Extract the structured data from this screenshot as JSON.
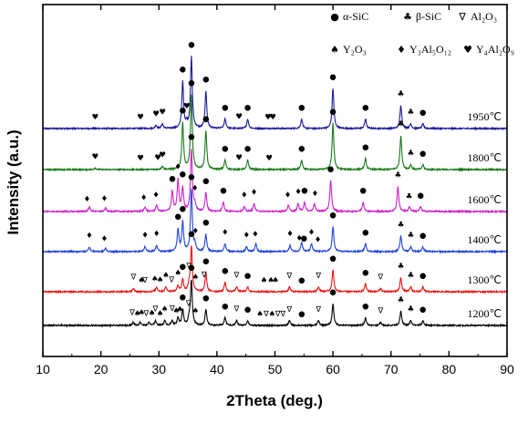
{
  "chart_data": {
    "type": "line",
    "xlabel": "2Theta (deg.)",
    "ylabel": "Intensity (a.u.)",
    "xlim": [
      10,
      90
    ],
    "xticks": [
      "10",
      "20",
      "30",
      "40",
      "50",
      "60",
      "70",
      "80",
      "90"
    ],
    "y_tick_labels_shown": false,
    "grid": false,
    "legend_placement": "top-right",
    "legend": [
      {
        "symbol": "●",
        "label": "α-SiC",
        "name": "alpha-sic"
      },
      {
        "symbol": "♣",
        "label": "β-SiC",
        "name": "beta-sic"
      },
      {
        "symbol": "∇",
        "label": "Al₂O₃",
        "name": "al2o3"
      },
      {
        "symbol": "♠",
        "label": "Y₂O₃",
        "name": "y2o3"
      },
      {
        "symbol": "♦",
        "label": "Y₃Al₅O₁₂",
        "name": "yag"
      },
      {
        "symbol": "♥",
        "label": "Y₄Al₂O₉",
        "name": "yam"
      }
    ],
    "series": [
      {
        "name": "1950℃",
        "color": "#1a1a99",
        "baseline": 0,
        "peaks": [
          [
            34.1,
            3.0
          ],
          [
            35.6,
            4.6
          ],
          [
            38.1,
            2.4
          ],
          [
            41.4,
            0.6
          ],
          [
            45.3,
            0.6
          ],
          [
            54.6,
            0.6
          ],
          [
            60.0,
            2.6
          ],
          [
            65.6,
            0.6
          ],
          [
            71.7,
            1.5
          ],
          [
            73.4,
            0.3
          ],
          [
            75.5,
            0.3
          ],
          [
            30.6,
            0.3
          ],
          [
            29.5,
            0.2
          ],
          [
            34.8,
            0.3
          ]
        ],
        "markers": [
          {
            "x": 19.0,
            "s": "♥"
          },
          {
            "x": 26.8,
            "s": "♥"
          },
          {
            "x": 29.5,
            "s": "♥"
          },
          {
            "x": 30.6,
            "s": "♥"
          },
          {
            "x": 34.1,
            "s": "●"
          },
          {
            "x": 34.8,
            "s": "♥"
          },
          {
            "x": 35.6,
            "s": "●"
          },
          {
            "x": 38.1,
            "s": "●"
          },
          {
            "x": 41.4,
            "s": "●"
          },
          {
            "x": 43.8,
            "s": "♥"
          },
          {
            "x": 45.3,
            "s": "●"
          },
          {
            "x": 48.8,
            "s": "♥"
          },
          {
            "x": 49.6,
            "s": "♥"
          },
          {
            "x": 54.6,
            "s": "●"
          },
          {
            "x": 60.0,
            "s": "●"
          },
          {
            "x": 65.6,
            "s": "●"
          },
          {
            "x": 71.7,
            "s": "♣"
          },
          {
            "x": 73.4,
            "s": "♣"
          },
          {
            "x": 75.5,
            "s": "●"
          }
        ]
      },
      {
        "name": "1800℃",
        "color": "#1a7a1a",
        "baseline": 1,
        "peaks": [
          [
            34.1,
            3.0
          ],
          [
            35.6,
            4.8
          ],
          [
            38.1,
            2.5
          ],
          [
            41.4,
            0.6
          ],
          [
            45.3,
            0.6
          ],
          [
            54.6,
            0.6
          ],
          [
            60.0,
            3.0
          ],
          [
            65.6,
            0.7
          ],
          [
            71.7,
            2.2
          ],
          [
            73.4,
            0.3
          ],
          [
            75.5,
            0.3
          ],
          [
            30.6,
            0.2
          ],
          [
            19.0,
            0.1
          ]
        ],
        "markers": [
          {
            "x": 19.0,
            "s": "♥"
          },
          {
            "x": 26.8,
            "s": "♥"
          },
          {
            "x": 29.8,
            "s": "♥"
          },
          {
            "x": 30.6,
            "s": "♥"
          },
          {
            "x": 34.1,
            "s": "●"
          },
          {
            "x": 35.6,
            "s": "●"
          },
          {
            "x": 38.1,
            "s": "●"
          },
          {
            "x": 41.4,
            "s": "●"
          },
          {
            "x": 43.8,
            "s": "♥"
          },
          {
            "x": 45.3,
            "s": "●"
          },
          {
            "x": 49.0,
            "s": "♥"
          },
          {
            "x": 54.6,
            "s": "●"
          },
          {
            "x": 60.0,
            "s": "●"
          },
          {
            "x": 65.6,
            "s": "●"
          },
          {
            "x": 71.7,
            "s": "♣"
          },
          {
            "x": 73.4,
            "s": "♣"
          },
          {
            "x": 75.5,
            "s": "●"
          }
        ]
      },
      {
        "name": "1600℃",
        "color": "#cc22cc",
        "baseline": 2,
        "peaks": [
          [
            18.0,
            0.3
          ],
          [
            20.8,
            0.2
          ],
          [
            27.6,
            0.3
          ],
          [
            29.6,
            0.4
          ],
          [
            32.3,
            1.3
          ],
          [
            33.3,
            2.0
          ],
          [
            34.1,
            1.5
          ],
          [
            35.6,
            4.0
          ],
          [
            36.2,
            0.4
          ],
          [
            38.1,
            1.2
          ],
          [
            41.1,
            0.6
          ],
          [
            44.7,
            0.3
          ],
          [
            46.4,
            0.5
          ],
          [
            52.3,
            0.4
          ],
          [
            54.0,
            0.5
          ],
          [
            55.1,
            0.6
          ],
          [
            56.8,
            0.5
          ],
          [
            59.6,
            2.0
          ],
          [
            65.2,
            0.6
          ],
          [
            71.2,
            1.6
          ],
          [
            73.2,
            0.3
          ],
          [
            75.1,
            0.3
          ]
        ],
        "markers": [
          {
            "x": 17.6,
            "s": "♦"
          },
          {
            "x": 20.6,
            "s": "♦"
          },
          {
            "x": 27.4,
            "s": "♦"
          },
          {
            "x": 29.5,
            "s": "♦"
          },
          {
            "x": 32.3,
            "s": "●"
          },
          {
            "x": 33.3,
            "s": "♦"
          },
          {
            "x": 34.1,
            "s": "●"
          },
          {
            "x": 35.6,
            "s": "●"
          },
          {
            "x": 36.2,
            "s": "♦"
          },
          {
            "x": 38.1,
            "s": "●"
          },
          {
            "x": 41.1,
            "s": "●"
          },
          {
            "x": 44.7,
            "s": "♦"
          },
          {
            "x": 46.4,
            "s": "♦"
          },
          {
            "x": 52.2,
            "s": "♦"
          },
          {
            "x": 54.0,
            "s": "♦"
          },
          {
            "x": 55.1,
            "s": "●"
          },
          {
            "x": 56.9,
            "s": "♦"
          },
          {
            "x": 59.6,
            "s": "●"
          },
          {
            "x": 65.2,
            "s": "●"
          },
          {
            "x": 71.2,
            "s": "♣"
          },
          {
            "x": 73.1,
            "s": "♣"
          },
          {
            "x": 75.1,
            "s": "●"
          }
        ]
      },
      {
        "name": "1400℃",
        "color": "#2244dd",
        "baseline": 3,
        "peaks": [
          [
            18.0,
            0.3
          ],
          [
            20.8,
            0.2
          ],
          [
            27.6,
            0.3
          ],
          [
            29.6,
            0.4
          ],
          [
            33.3,
            1.4
          ],
          [
            34.1,
            1.9
          ],
          [
            35.6,
            4.0
          ],
          [
            36.2,
            0.4
          ],
          [
            38.1,
            1.1
          ],
          [
            41.4,
            0.5
          ],
          [
            45.1,
            0.3
          ],
          [
            46.7,
            0.5
          ],
          [
            52.6,
            0.4
          ],
          [
            54.6,
            0.6
          ],
          [
            56.3,
            0.5
          ],
          [
            60.0,
            1.6
          ],
          [
            65.6,
            0.5
          ],
          [
            71.7,
            1.0
          ],
          [
            73.4,
            0.3
          ],
          [
            75.5,
            0.3
          ]
        ],
        "markers": [
          {
            "x": 18.0,
            "s": "♦"
          },
          {
            "x": 20.6,
            "s": "♦"
          },
          {
            "x": 27.6,
            "s": "♦"
          },
          {
            "x": 29.6,
            "s": "♦"
          },
          {
            "x": 33.3,
            "s": "●"
          },
          {
            "x": 34.1,
            "s": "●"
          },
          {
            "x": 35.6,
            "s": "●"
          },
          {
            "x": 36.3,
            "s": "♦"
          },
          {
            "x": 38.1,
            "s": "●"
          },
          {
            "x": 41.4,
            "s": "♦"
          },
          {
            "x": 45.1,
            "s": "♦"
          },
          {
            "x": 46.6,
            "s": "♦"
          },
          {
            "x": 52.6,
            "s": "♦"
          },
          {
            "x": 54.2,
            "s": "♦"
          },
          {
            "x": 55.0,
            "s": "●"
          },
          {
            "x": 56.3,
            "s": "♦"
          },
          {
            "x": 57.4,
            "s": "♦"
          },
          {
            "x": 60.0,
            "s": "●"
          },
          {
            "x": 65.6,
            "s": "●"
          },
          {
            "x": 71.7,
            "s": "♣"
          },
          {
            "x": 73.4,
            "s": "♣"
          },
          {
            "x": 75.5,
            "s": "●"
          }
        ]
      },
      {
        "name": "1300℃",
        "color": "#ee1111",
        "baseline": 4,
        "peaks": [
          [
            25.6,
            0.2
          ],
          [
            29.6,
            0.3
          ],
          [
            31.2,
            0.3
          ],
          [
            33.3,
            0.4
          ],
          [
            34.1,
            0.8
          ],
          [
            35.2,
            0.4
          ],
          [
            35.6,
            2.9
          ],
          [
            38.1,
            1.2
          ],
          [
            41.4,
            0.6
          ],
          [
            43.4,
            0.3
          ],
          [
            45.3,
            0.3
          ],
          [
            52.5,
            0.3
          ],
          [
            57.5,
            0.3
          ],
          [
            60.0,
            1.4
          ],
          [
            65.6,
            0.5
          ],
          [
            68.2,
            0.2
          ],
          [
            71.7,
            0.9
          ],
          [
            73.4,
            0.3
          ],
          [
            75.5,
            0.3
          ]
        ],
        "markers": [
          {
            "x": 25.6,
            "s": "∇"
          },
          {
            "x": 27.0,
            "s": "♠"
          },
          {
            "x": 27.6,
            "s": "∇"
          },
          {
            "x": 29.3,
            "s": "♠"
          },
          {
            "x": 30.2,
            "s": "♠"
          },
          {
            "x": 31.2,
            "s": "♠"
          },
          {
            "x": 32.2,
            "s": "∇"
          },
          {
            "x": 33.3,
            "s": "♠"
          },
          {
            "x": 34.1,
            "s": "●"
          },
          {
            "x": 35.2,
            "s": "∇"
          },
          {
            "x": 35.6,
            "s": "●"
          },
          {
            "x": 36.3,
            "s": "♠"
          },
          {
            "x": 37.8,
            "s": "∇"
          },
          {
            "x": 38.1,
            "s": "●"
          },
          {
            "x": 41.4,
            "s": "●"
          },
          {
            "x": 43.4,
            "s": "∇"
          },
          {
            "x": 45.3,
            "s": "●"
          },
          {
            "x": 48.1,
            "s": "♠"
          },
          {
            "x": 49.3,
            "s": "♠"
          },
          {
            "x": 50.1,
            "s": "♠"
          },
          {
            "x": 52.5,
            "s": "∇"
          },
          {
            "x": 54.6,
            "s": "●"
          },
          {
            "x": 57.5,
            "s": "∇"
          },
          {
            "x": 60.0,
            "s": "●"
          },
          {
            "x": 65.6,
            "s": "●"
          },
          {
            "x": 68.2,
            "s": "∇"
          },
          {
            "x": 71.7,
            "s": "♣"
          },
          {
            "x": 73.4,
            "s": "♣"
          },
          {
            "x": 75.5,
            "s": "●"
          }
        ]
      },
      {
        "name": "1200℃",
        "color": "#000000",
        "baseline": 5,
        "peaks": [
          [
            25.6,
            0.2
          ],
          [
            26.8,
            0.2
          ],
          [
            28.3,
            0.2
          ],
          [
            29.4,
            0.3
          ],
          [
            31.0,
            0.3
          ],
          [
            32.3,
            0.3
          ],
          [
            33.3,
            0.5
          ],
          [
            34.1,
            1.0
          ],
          [
            35.2,
            0.4
          ],
          [
            35.6,
            2.9
          ],
          [
            38.1,
            1.0
          ],
          [
            41.4,
            0.5
          ],
          [
            43.4,
            0.3
          ],
          [
            45.3,
            0.3
          ],
          [
            52.5,
            0.3
          ],
          [
            57.5,
            0.3
          ],
          [
            60.0,
            1.4
          ],
          [
            65.6,
            0.5
          ],
          [
            68.2,
            0.2
          ],
          [
            71.7,
            0.9
          ],
          [
            73.4,
            0.3
          ],
          [
            75.5,
            0.3
          ]
        ],
        "markers": [
          {
            "x": 25.4,
            "s": "∇"
          },
          {
            "x": 26.3,
            "s": "♠"
          },
          {
            "x": 27.0,
            "s": "♠"
          },
          {
            "x": 27.8,
            "s": "∇"
          },
          {
            "x": 28.8,
            "s": "♠"
          },
          {
            "x": 29.4,
            "s": "∇"
          },
          {
            "x": 30.2,
            "s": "♠"
          },
          {
            "x": 31.0,
            "s": "♠"
          },
          {
            "x": 32.3,
            "s": "∇"
          },
          {
            "x": 33.0,
            "s": "♠"
          },
          {
            "x": 33.6,
            "s": "♠"
          },
          {
            "x": 34.1,
            "s": "●"
          },
          {
            "x": 35.1,
            "s": "∇"
          },
          {
            "x": 35.6,
            "s": "●"
          },
          {
            "x": 36.3,
            "s": "♠"
          },
          {
            "x": 38.1,
            "s": "●"
          },
          {
            "x": 41.4,
            "s": "●"
          },
          {
            "x": 43.4,
            "s": "∇"
          },
          {
            "x": 45.3,
            "s": "●"
          },
          {
            "x": 47.4,
            "s": "♠"
          },
          {
            "x": 48.5,
            "s": "∇"
          },
          {
            "x": 49.5,
            "s": "♠"
          },
          {
            "x": 50.5,
            "s": "∇"
          },
          {
            "x": 51.4,
            "s": "∇"
          },
          {
            "x": 52.5,
            "s": "∇"
          },
          {
            "x": 54.6,
            "s": "●"
          },
          {
            "x": 57.5,
            "s": "∇"
          },
          {
            "x": 60.0,
            "s": "●"
          },
          {
            "x": 65.6,
            "s": "●"
          },
          {
            "x": 68.2,
            "s": "∇"
          },
          {
            "x": 71.7,
            "s": "♣"
          },
          {
            "x": 73.4,
            "s": "♣"
          },
          {
            "x": 75.5,
            "s": "●"
          }
        ]
      }
    ]
  }
}
